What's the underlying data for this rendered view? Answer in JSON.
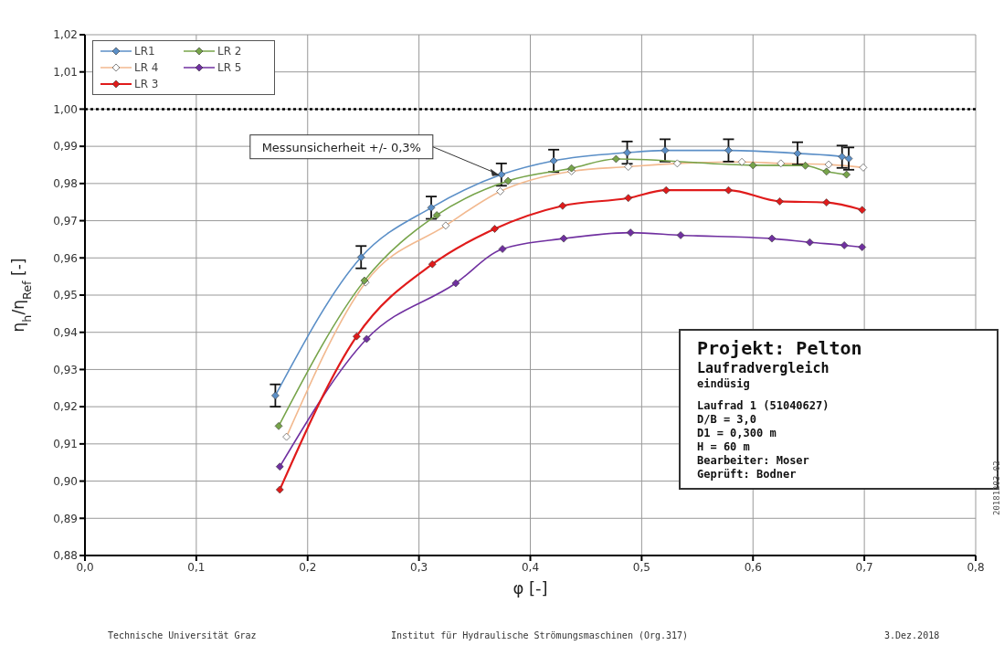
{
  "chart_data": {
    "type": "line",
    "xlabel": "φ [-]",
    "ylabel": "η$_{h}$/η$_{Ref}$ [-]",
    "xlim": [
      0,
      0.8
    ],
    "xticks": [
      {
        "value": 0,
        "label": "0,0"
      },
      {
        "value": 0.1,
        "label": "0,1"
      },
      {
        "value": 0.2,
        "label": "0,2"
      },
      {
        "value": 0.3,
        "label": "0,3"
      },
      {
        "value": 0.4,
        "label": "0,4"
      },
      {
        "value": 0.5,
        "label": "0,5"
      },
      {
        "value": 0.6,
        "label": "0,6"
      },
      {
        "value": 0.7,
        "label": "0,7"
      },
      {
        "value": 0.8,
        "label": "0,8"
      }
    ],
    "ylim": [
      0.88,
      1.02
    ],
    "yticks": [
      {
        "value": 0.88,
        "label": "0,88"
      },
      {
        "value": 0.89,
        "label": "0,89"
      },
      {
        "value": 0.9,
        "label": "0,90"
      },
      {
        "value": 0.91,
        "label": "0,91"
      },
      {
        "value": 0.92,
        "label": "0,92"
      },
      {
        "value": 0.93,
        "label": "0,93"
      },
      {
        "value": 0.94,
        "label": "0,94"
      },
      {
        "value": 0.95,
        "label": "0,95"
      },
      {
        "value": 0.96,
        "label": "0,96"
      },
      {
        "value": 0.97,
        "label": "0,97"
      },
      {
        "value": 0.98,
        "label": "0,98"
      },
      {
        "value": 0.99,
        "label": "0,99"
      },
      {
        "value": 1.0,
        "label": "1,00"
      },
      {
        "value": 1.01,
        "label": "1,01"
      },
      {
        "value": 1.02,
        "label": "1,02"
      }
    ],
    "grid": true,
    "legend": "top left",
    "marker": "diamond",
    "line_style": "solid",
    "series": [
      {
        "name": "LR1",
        "color": "#5b8fc7",
        "x": [
          0.171,
          0.248,
          0.311,
          0.374,
          0.421,
          0.487,
          0.521,
          0.578,
          0.64,
          0.68,
          0.686
        ],
        "values": [
          0.923,
          0.9602,
          0.9735,
          0.9824,
          0.9861,
          0.9883,
          0.9889,
          0.9889,
          0.9881,
          0.9872,
          0.9867
        ],
        "errors": [
          0.003,
          0.003,
          0.003,
          0.003,
          0.003,
          0.003,
          0.003,
          0.003,
          0.003,
          0.003,
          0.003
        ]
      },
      {
        "name": "LR 2",
        "color": "#77a44a",
        "x": [
          0.174,
          0.251,
          0.316,
          0.38,
          0.437,
          0.477,
          0.6,
          0.647,
          0.666,
          0.684
        ],
        "values": [
          0.9148,
          0.9539,
          0.9715,
          0.9807,
          0.9841,
          0.9866,
          0.9849,
          0.9848,
          0.9832,
          0.9824
        ]
      },
      {
        "name": "LR 4",
        "color": "#f2b98f",
        "x": [
          0.181,
          0.252,
          0.324,
          0.373,
          0.437,
          0.488,
          0.532,
          0.59,
          0.625,
          0.668,
          0.699
        ],
        "values": [
          0.9119,
          0.9534,
          0.9687,
          0.9779,
          0.9833,
          0.9845,
          0.9854,
          0.9858,
          0.9854,
          0.9851,
          0.9843
        ]
      },
      {
        "name": "LR 5",
        "color": "#7030a0",
        "x": [
          0.175,
          0.253,
          0.333,
          0.375,
          0.43,
          0.49,
          0.535,
          0.617,
          0.651,
          0.682,
          0.698
        ],
        "values": [
          0.9039,
          0.9382,
          0.9532,
          0.9624,
          0.9652,
          0.9668,
          0.9661,
          0.9652,
          0.9642,
          0.9634,
          0.9629
        ]
      },
      {
        "name": "LR 3",
        "color": "#e01b1b",
        "x": [
          0.175,
          0.244,
          0.312,
          0.368,
          0.429,
          0.488,
          0.522,
          0.578,
          0.624,
          0.666,
          0.698
        ],
        "values": [
          0.8977,
          0.9389,
          0.9583,
          0.9678,
          0.974,
          0.9761,
          0.9782,
          0.9782,
          0.9752,
          0.9749,
          0.9729
        ]
      }
    ],
    "ref_lines": [
      {
        "axis": "y",
        "value": 1.0,
        "color": "#000000",
        "line_style": "dotted"
      }
    ],
    "annotations": [
      {
        "text": "Messunsicherheit +/- 0,3%",
        "x": 0.374,
        "y": 0.982
      },
      "Projekt: Pelton",
      "Laufradvergleich",
      "eindüsig",
      "Laufrad 1 (51040627)",
      "D/B = 3,0",
      "D1 = 0,300 m",
      "H = 60 m",
      "Bearbeiter: Moser",
      "Geprüft: Bodner",
      "Technische Universität Graz",
      "Institut für Hydraulische Strömungsmaschinen (Org.317)",
      "3.Dez.2018",
      "20181203-02"
    ]
  }
}
